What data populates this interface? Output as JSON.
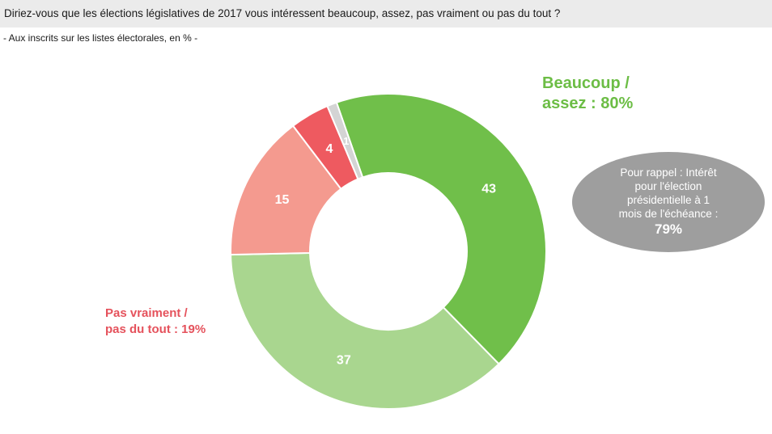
{
  "header": {
    "question": "Diriez-vous que les élections législatives de 2017 vous intéressent beaucoup, assez, pas vraiment ou pas du tout ?",
    "subtitle": "- Aux inscrits sur les listes électorales, en % -"
  },
  "callouts": {
    "positive_line1": "Beaucoup /",
    "positive_line2": "assez : 80%",
    "negative_line1": "Pas vraiment /",
    "negative_line2": "pas du tout : 19%"
  },
  "reminder": {
    "lines": [
      "Pour rappel : Intérêt",
      "pour l'élection",
      "présidentielle à 1",
      "mois de l'échéance :"
    ],
    "value": "79%"
  },
  "chart_data": {
    "type": "pie",
    "donut": true,
    "slices": [
      {
        "label": "43",
        "value": 43,
        "color": "#70bf4a"
      },
      {
        "label": "37",
        "value": 37,
        "color": "#a9d68f"
      },
      {
        "label": "15",
        "value": 15,
        "color": "#f49a8f"
      },
      {
        "label": "4",
        "value": 4,
        "color": "#ee5a60"
      },
      {
        "label": "1",
        "value": 1,
        "color": "#d4d4d4"
      }
    ],
    "colors": {
      "positive_text": "#6cbd45",
      "negative_text": "#e5525c",
      "reminder_bg": "#9e9e9e"
    }
  }
}
